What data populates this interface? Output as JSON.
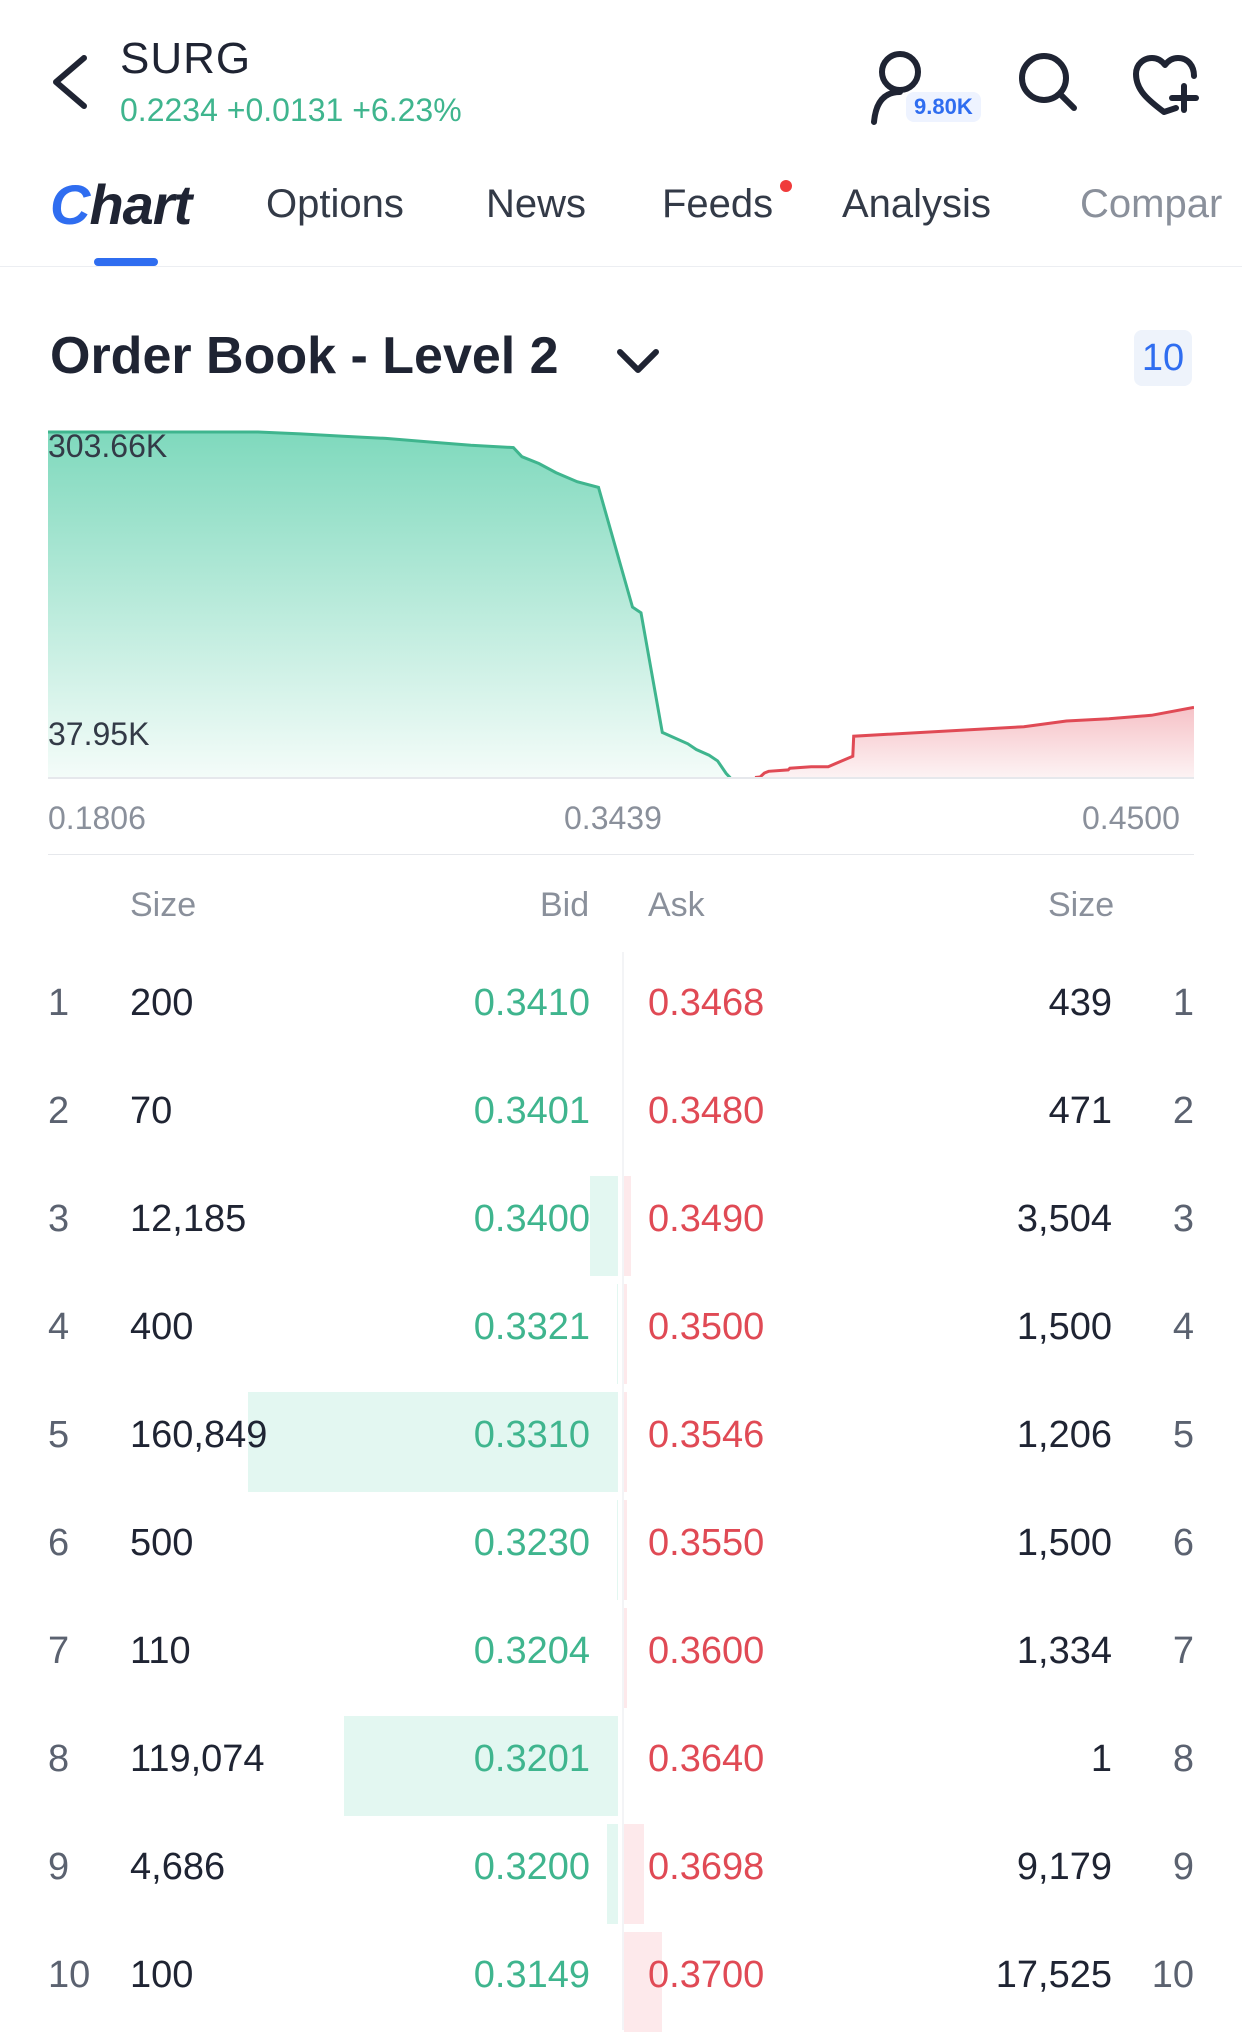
{
  "header": {
    "ticker": "SURG",
    "quote": "0.2234 +0.0131 +6.23%",
    "follow_count": "9.80K",
    "icons": [
      "back-arrow-icon",
      "person-icon",
      "search-icon",
      "heart-plus-icon"
    ]
  },
  "tabs": [
    {
      "label": "Chart",
      "active": true
    },
    {
      "label": "Options"
    },
    {
      "label": "News"
    },
    {
      "label": "Feeds",
      "dot": true
    },
    {
      "label": "Analysis"
    },
    {
      "label": "Compar"
    }
  ],
  "order_book": {
    "title": "Order Book - Level 2",
    "depth": "10"
  },
  "colors": {
    "bid": "#3fb58e",
    "ask": "#e04a55",
    "accent": "#2f6df0"
  },
  "chart_data": {
    "type": "area",
    "y_tick_labels": [
      "303.66K",
      "37.95K"
    ],
    "x_tick_labels": [
      "0.1806",
      "0.3439",
      "0.4500"
    ],
    "xlim": [
      0.1806,
      0.45
    ],
    "ylim": [
      0,
      303660
    ],
    "series": [
      {
        "side": "bid",
        "color": "#3fb58e",
        "x": [
          0.1806,
          0.23,
          0.24,
          0.25,
          0.26,
          0.27,
          0.28,
          0.29,
          0.292,
          0.296,
          0.3,
          0.305,
          0.31,
          0.318,
          0.32,
          0.325,
          0.331,
          0.333,
          0.336,
          0.338,
          0.34,
          0.341
        ],
        "y": [
          303660,
          303660,
          302000,
          300000,
          298000,
          295000,
          292000,
          290000,
          282000,
          276000,
          268000,
          260000,
          255000,
          150000,
          145000,
          40000,
          30000,
          25000,
          20000,
          15000,
          4000,
          200
        ]
      },
      {
        "side": "ask",
        "color": "#e04a55",
        "x": [
          0.3468,
          0.348,
          0.349,
          0.35,
          0.3546,
          0.355,
          0.36,
          0.364,
          0.3698,
          0.37,
          0.41,
          0.42,
          0.43,
          0.44,
          0.45
        ],
        "y": [
          439,
          910,
          4414,
          5914,
          7120,
          8620,
          9954,
          9955,
          19134,
          36659,
          45000,
          50000,
          52000,
          55000,
          62000
        ]
      }
    ]
  },
  "table": {
    "headers": {
      "size_left": "Size",
      "bid": "Bid",
      "ask": "Ask",
      "size_right": "Size"
    },
    "rows": [
      {
        "level": "1",
        "bid_size": "200",
        "bid": "0.3410",
        "ask": "0.3468",
        "ask_size": "439",
        "bid_bar": 0,
        "ask_bar": 0
      },
      {
        "level": "2",
        "bid_size": "70",
        "bid": "0.3401",
        "ask": "0.3480",
        "ask_size": "471",
        "bid_bar": 0,
        "ask_bar": 0
      },
      {
        "level": "3",
        "bid_size": "12,185",
        "bid": "0.3400",
        "ask": "0.3490",
        "ask_size": "3,504",
        "bid_bar": 0.076,
        "ask_bar": 0.019
      },
      {
        "level": "4",
        "bid_size": "400",
        "bid": "0.3321",
        "ask": "0.3500",
        "ask_size": "1,500",
        "bid_bar": 0.002,
        "ask_bar": 0.008
      },
      {
        "level": "5",
        "bid_size": "160,849",
        "bid": "0.3310",
        "ask": "0.3546",
        "ask_size": "1,206",
        "bid_bar": 1.0,
        "ask_bar": 0.007
      },
      {
        "level": "6",
        "bid_size": "500",
        "bid": "0.3230",
        "ask": "0.3550",
        "ask_size": "1,500",
        "bid_bar": 0.003,
        "ask_bar": 0.008
      },
      {
        "level": "7",
        "bid_size": "110",
        "bid": "0.3204",
        "ask": "0.3600",
        "ask_size": "1,334",
        "bid_bar": 0.001,
        "ask_bar": 0.007
      },
      {
        "level": "8",
        "bid_size": "119,074",
        "bid": "0.3201",
        "ask": "0.3640",
        "ask_size": "1",
        "bid_bar": 0.74,
        "ask_bar": 0
      },
      {
        "level": "9",
        "bid_size": "4,686",
        "bid": "0.3200",
        "ask": "0.3698",
        "ask_size": "9,179",
        "bid_bar": 0.029,
        "ask_bar": 0.052
      },
      {
        "level": "10",
        "bid_size": "100",
        "bid": "0.3149",
        "ask": "0.3700",
        "ask_size": "17,525",
        "bid_bar": 0.001,
        "ask_bar": 0.1
      }
    ]
  }
}
